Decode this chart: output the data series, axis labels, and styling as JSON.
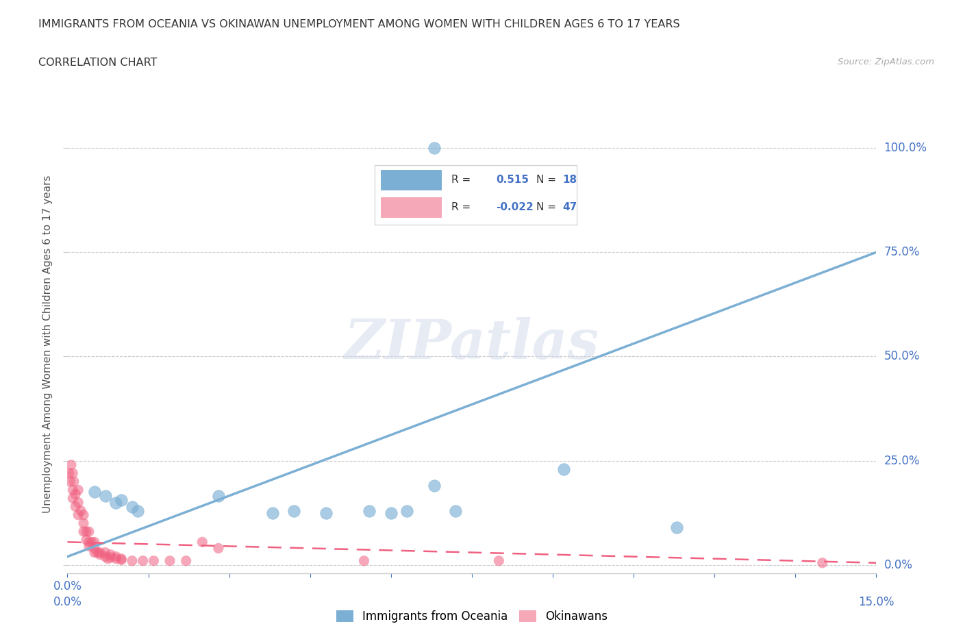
{
  "title": "IMMIGRANTS FROM OCEANIA VS OKINAWAN UNEMPLOYMENT AMONG WOMEN WITH CHILDREN AGES 6 TO 17 YEARS",
  "subtitle": "CORRELATION CHART",
  "source": "Source: ZipAtlas.com",
  "ylabel": "Unemployment Among Women with Children Ages 6 to 17 years",
  "xlim": [
    0.0,
    0.15
  ],
  "ylim": [
    -0.02,
    1.08
  ],
  "ytick_values": [
    0.0,
    0.25,
    0.5,
    0.75,
    1.0
  ],
  "background_color": "#ffffff",
  "blue_color": "#7bafd4",
  "pink_color": "#f4a8b8",
  "pink_scatter_color": "#f06080",
  "blue_scatter": [
    [
      0.005,
      0.175
    ],
    [
      0.007,
      0.165
    ],
    [
      0.009,
      0.15
    ],
    [
      0.01,
      0.155
    ],
    [
      0.012,
      0.14
    ],
    [
      0.013,
      0.13
    ],
    [
      0.028,
      0.165
    ],
    [
      0.038,
      0.125
    ],
    [
      0.042,
      0.13
    ],
    [
      0.048,
      0.125
    ],
    [
      0.056,
      0.13
    ],
    [
      0.06,
      0.125
    ],
    [
      0.063,
      0.13
    ],
    [
      0.068,
      0.19
    ],
    [
      0.072,
      0.13
    ],
    [
      0.092,
      0.23
    ],
    [
      0.113,
      0.09
    ],
    [
      0.068,
      1.0
    ]
  ],
  "pink_scatter": [
    [
      0.0003,
      0.22
    ],
    [
      0.0005,
      0.2
    ],
    [
      0.0007,
      0.24
    ],
    [
      0.001,
      0.22
    ],
    [
      0.001,
      0.18
    ],
    [
      0.001,
      0.16
    ],
    [
      0.0012,
      0.2
    ],
    [
      0.0015,
      0.17
    ],
    [
      0.0015,
      0.14
    ],
    [
      0.002,
      0.18
    ],
    [
      0.002,
      0.15
    ],
    [
      0.002,
      0.12
    ],
    [
      0.0025,
      0.13
    ],
    [
      0.003,
      0.12
    ],
    [
      0.003,
      0.1
    ],
    [
      0.003,
      0.08
    ],
    [
      0.0035,
      0.08
    ],
    [
      0.0035,
      0.06
    ],
    [
      0.004,
      0.08
    ],
    [
      0.004,
      0.055
    ],
    [
      0.004,
      0.045
    ],
    [
      0.0045,
      0.055
    ],
    [
      0.005,
      0.055
    ],
    [
      0.005,
      0.04
    ],
    [
      0.005,
      0.03
    ],
    [
      0.0055,
      0.03
    ],
    [
      0.006,
      0.03
    ],
    [
      0.006,
      0.025
    ],
    [
      0.007,
      0.03
    ],
    [
      0.007,
      0.02
    ],
    [
      0.0075,
      0.015
    ],
    [
      0.008,
      0.025
    ],
    [
      0.008,
      0.018
    ],
    [
      0.009,
      0.02
    ],
    [
      0.009,
      0.015
    ],
    [
      0.01,
      0.015
    ],
    [
      0.01,
      0.012
    ],
    [
      0.012,
      0.01
    ],
    [
      0.014,
      0.01
    ],
    [
      0.016,
      0.01
    ],
    [
      0.019,
      0.01
    ],
    [
      0.022,
      0.01
    ],
    [
      0.025,
      0.055
    ],
    [
      0.028,
      0.04
    ],
    [
      0.055,
      0.01
    ],
    [
      0.08,
      0.01
    ],
    [
      0.14,
      0.005
    ]
  ],
  "blue_line_x": [
    0.0,
    0.15
  ],
  "blue_line_y": [
    0.02,
    0.75
  ],
  "pink_line_x": [
    0.0,
    0.15
  ],
  "pink_line_y": [
    0.055,
    0.005
  ]
}
